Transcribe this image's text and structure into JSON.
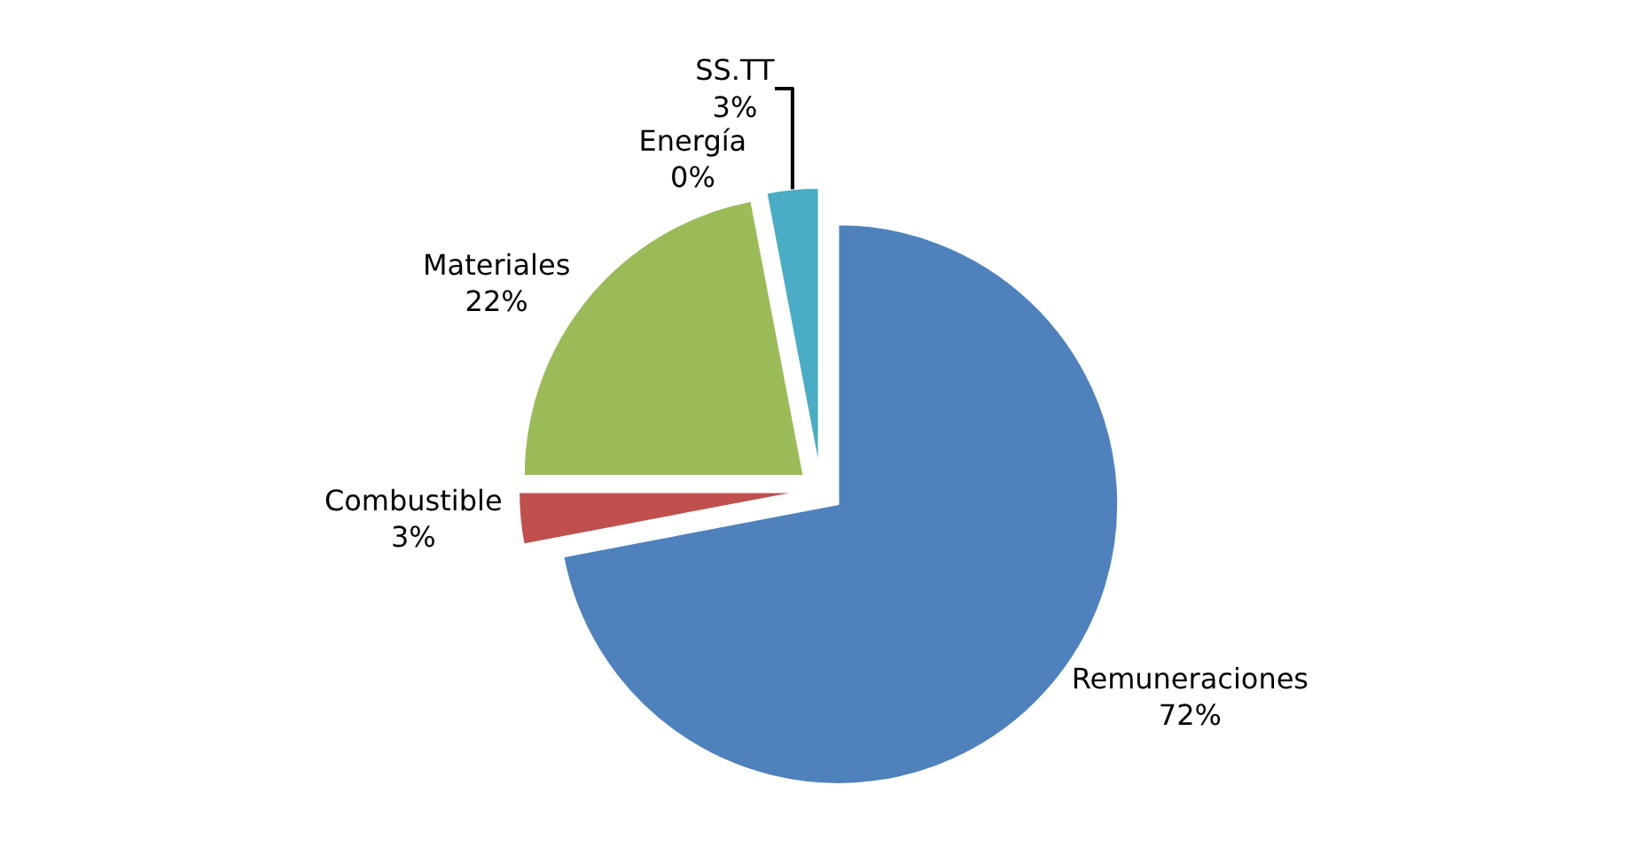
{
  "chart_data": {
    "type": "pie",
    "categories": [
      "Remuneraciones",
      "Combustible",
      "Materiales",
      "Energía",
      "SS.TT"
    ],
    "values": [
      72,
      3,
      22,
      0,
      3
    ],
    "value_labels": [
      "72%",
      "3%",
      "22%",
      "0%",
      "3%"
    ],
    "colors": [
      "#4f81bd",
      "#c0504d",
      "#9bbb59",
      "#2c2d4f",
      "#4bacc6"
    ],
    "legend": false
  }
}
